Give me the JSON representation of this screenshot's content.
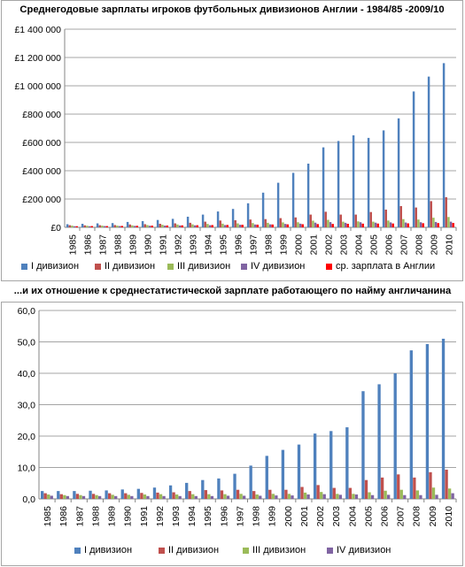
{
  "colors": {
    "div1": "#4f81bd",
    "div2": "#c0504d",
    "div3": "#9bbb59",
    "div4": "#8064a2",
    "avg": "#ff0000",
    "grid": "#868686",
    "axis": "#868686"
  },
  "chart_data": [
    {
      "type": "bar",
      "title": "Среднегодовые зарплаты игроков футбольных дивизионов Англии - 1984/85 -2009/10",
      "categories": [
        "1985",
        "1986",
        "1987",
        "1988",
        "1989",
        "1990",
        "1991",
        "1992",
        "1993",
        "1994",
        "1995",
        "1996",
        "1997",
        "1998",
        "1999",
        "2000",
        "2001",
        "2002",
        "2003",
        "2004",
        "2005",
        "2006",
        "2007",
        "2008",
        "2009",
        "2010"
      ],
      "ylim": [
        0,
        1400000
      ],
      "yticks": [
        0,
        200000,
        400000,
        600000,
        800000,
        1000000,
        1200000,
        1400000
      ],
      "ytick_labels": [
        "£0",
        "£200 000",
        "£400 000",
        "£600 000",
        "£800 000",
        "£1 000 000",
        "£1 200 000",
        "£1 400 000"
      ],
      "grid": true,
      "legend_position": "bottom",
      "series": [
        {
          "name": "I дивизион",
          "color_key": "div1",
          "values": [
            22000,
            25000,
            28000,
            30000,
            38000,
            44000,
            52000,
            60000,
            75000,
            90000,
            112000,
            130000,
            170000,
            245000,
            315000,
            385000,
            450000,
            565000,
            610000,
            650000,
            632000,
            685000,
            770000,
            960000,
            1065000,
            1160000
          ]
        },
        {
          "name": "II дивизион",
          "color_key": "div2",
          "values": [
            15000,
            14000,
            15000,
            16000,
            20000,
            22000,
            25000,
            28000,
            32000,
            40000,
            48000,
            50000,
            55000,
            58000,
            65000,
            70000,
            90000,
            110000,
            90000,
            90000,
            108000,
            125000,
            150000,
            140000,
            185000,
            213000
          ]
        },
        {
          "name": "III дивизион",
          "color_key": "div3",
          "values": [
            12000,
            11000,
            12000,
            12000,
            14000,
            16000,
            18000,
            20000,
            21000,
            24000,
            26000,
            28000,
            30000,
            32000,
            35000,
            36000,
            47000,
            53000,
            40000,
            42000,
            40000,
            48000,
            58000,
            55000,
            68000,
            73000
          ]
        },
        {
          "name": "IV дивизион",
          "color_key": "div4",
          "values": [
            8000,
            8000,
            9000,
            9000,
            10000,
            11000,
            12000,
            13000,
            14000,
            15000,
            16000,
            18000,
            20000,
            21000,
            24000,
            26000,
            33000,
            37000,
            32000,
            36000,
            33000,
            35000,
            34000,
            36000,
            38000,
            40000
          ]
        },
        {
          "name": "ср. зарплата в Англии",
          "color_key": "avg",
          "values": [
            8000,
            9000,
            9000,
            10000,
            11000,
            12000,
            13000,
            14000,
            15000,
            16000,
            17000,
            18000,
            19000,
            20000,
            21000,
            22000,
            23000,
            24000,
            25000,
            26000,
            26500,
            27000,
            28000,
            29000,
            30000,
            31000
          ]
        }
      ]
    },
    {
      "type": "bar",
      "title": "...и их отношение к среднестатистической зарплате работающего по найму англичанина",
      "categories": [
        "1985",
        "1986",
        "1987",
        "1988",
        "1989",
        "1990",
        "1991",
        "1992",
        "1993",
        "1994",
        "1995",
        "1996",
        "1997",
        "1998",
        "1999",
        "2000",
        "2001",
        "2002",
        "2003",
        "2004",
        "2005",
        "2006",
        "2007",
        "2008",
        "2009",
        "2010"
      ],
      "ylim": [
        0,
        60
      ],
      "yticks": [
        0,
        10,
        20,
        30,
        40,
        50,
        60
      ],
      "ytick_labels": [
        "0,0",
        "10,0",
        "20,0",
        "30,0",
        "40,0",
        "50,0",
        "60,0"
      ],
      "grid": true,
      "legend_position": "bottom",
      "series": [
        {
          "name": "I дивизион",
          "color_key": "div1",
          "values": [
            2.5,
            2.5,
            2.5,
            2.6,
            2.7,
            3.0,
            3.2,
            3.6,
            4.3,
            5.1,
            6.0,
            6.5,
            8.0,
            10.6,
            13.7,
            15.6,
            17.3,
            20.8,
            21.6,
            22.8,
            34.3,
            36.5,
            40.0,
            47.3,
            49.3,
            51.0
          ]
        },
        {
          "name": "II дивизион",
          "color_key": "div2",
          "values": [
            1.8,
            1.5,
            1.6,
            1.6,
            1.8,
            1.8,
            1.9,
            2.0,
            2.1,
            2.5,
            2.8,
            2.7,
            2.9,
            2.5,
            2.9,
            2.9,
            3.8,
            4.4,
            3.5,
            3.5,
            6.0,
            6.8,
            7.8,
            6.8,
            8.5,
            9.3
          ]
        },
        {
          "name": "III дивизион",
          "color_key": "div3",
          "values": [
            1.4,
            1.2,
            1.2,
            1.2,
            1.3,
            1.3,
            1.4,
            1.5,
            1.4,
            1.5,
            1.5,
            1.5,
            1.6,
            1.4,
            1.6,
            1.6,
            2.0,
            2.2,
            1.6,
            1.6,
            2.1,
            2.6,
            2.9,
            2.7,
            3.6,
            3.3
          ]
        },
        {
          "name": "IV дивизион",
          "color_key": "div4",
          "values": [
            1.0,
            0.9,
            0.9,
            0.9,
            0.9,
            0.9,
            0.9,
            0.9,
            0.9,
            0.9,
            0.9,
            1.0,
            1.0,
            1.0,
            1.1,
            1.1,
            1.4,
            1.5,
            1.3,
            1.4,
            1.2,
            1.3,
            1.2,
            1.2,
            1.3,
            1.8
          ]
        }
      ]
    }
  ]
}
